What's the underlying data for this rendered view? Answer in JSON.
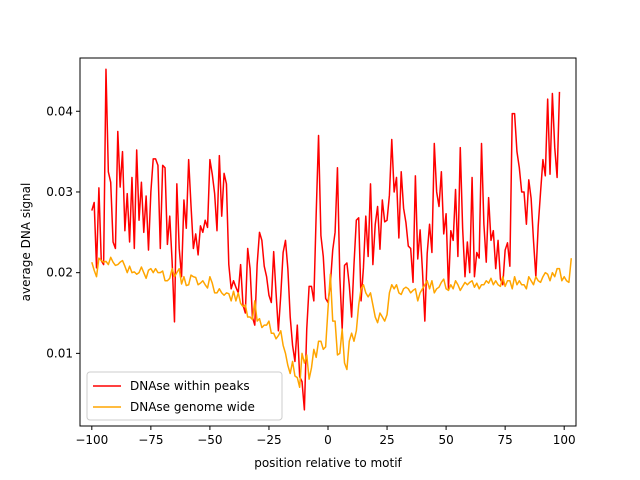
{
  "chart_data": {
    "type": "line",
    "title": "",
    "xlabel": "position relative to motif",
    "ylabel": "average DNA signal",
    "xlim": [
      -105,
      105
    ],
    "ylim": [
      0.001,
      0.0466
    ],
    "xticks": [
      -100,
      -75,
      -50,
      -25,
      0,
      25,
      50,
      75,
      100
    ],
    "xtick_labels": [
      "−100",
      "−75",
      "−50",
      "−25",
      "0",
      "25",
      "50",
      "75",
      "100"
    ],
    "yticks": [
      0.01,
      0.02,
      0.03,
      0.04
    ],
    "ytick_labels": [
      "0.01",
      "0.02",
      "0.03",
      "0.04"
    ],
    "grid": false,
    "legend_position": "lower-left",
    "series": [
      {
        "name": "DNAse within peaks",
        "color": "#ff0000",
        "x_start": -100,
        "x_step": 1,
        "values": [
          0.0277,
          0.0287,
          0.0206,
          0.0305,
          0.0215,
          0.021,
          0.0452,
          0.0325,
          0.0312,
          0.0238,
          0.023,
          0.0375,
          0.0306,
          0.035,
          0.0252,
          0.0298,
          0.0238,
          0.0318,
          0.023,
          0.0352,
          0.0265,
          0.0312,
          0.025,
          0.0295,
          0.0228,
          0.03,
          0.0341,
          0.0341,
          0.0333,
          0.023,
          0.0333,
          0.033,
          0.0235,
          0.027,
          0.0214,
          0.0139,
          0.031,
          0.023,
          0.0195,
          0.029,
          0.0255,
          0.034,
          0.0283,
          0.023,
          0.0248,
          0.0222,
          0.0258,
          0.025,
          0.0265,
          0.0256,
          0.034,
          0.0322,
          0.0298,
          0.0252,
          0.0345,
          0.027,
          0.0323,
          0.031,
          0.021,
          0.018,
          0.019,
          0.0182,
          0.0175,
          0.021,
          0.016,
          0.015,
          0.023,
          0.0205,
          0.0145,
          0.0135,
          0.021,
          0.025,
          0.024,
          0.0208,
          0.0195,
          0.0172,
          0.0163,
          0.0226,
          0.0175,
          0.0128,
          0.0172,
          0.0225,
          0.024,
          0.0205,
          0.0145,
          0.011,
          0.009,
          0.0135,
          0.0071,
          0.0065,
          0.003,
          0.013,
          0.0183,
          0.0183,
          0.0165,
          0.0273,
          0.037,
          0.0246,
          0.022,
          0.0168,
          0.0163,
          0.0186,
          0.0228,
          0.025,
          0.033,
          0.0195,
          0.013,
          0.0209,
          0.0212,
          0.0185,
          0.0145,
          0.021,
          0.0265,
          0.0268,
          0.0165,
          0.0206,
          0.027,
          0.022,
          0.031,
          0.021,
          0.026,
          0.0282,
          0.0229,
          0.029,
          0.0263,
          0.0265,
          0.0296,
          0.0365,
          0.03,
          0.0318,
          0.0243,
          0.0325,
          0.028,
          0.0262,
          0.0233,
          0.023,
          0.0188,
          0.032,
          0.0217,
          0.0253,
          0.0202,
          0.014,
          0.0224,
          0.026,
          0.0225,
          0.036,
          0.03,
          0.0282,
          0.0325,
          0.0248,
          0.0273,
          0.018,
          0.0252,
          0.024,
          0.0303,
          0.022,
          0.0355,
          0.0255,
          0.0195,
          0.0238,
          0.02,
          0.0318,
          0.0195,
          0.0225,
          0.0218,
          0.036,
          0.026,
          0.0213,
          0.0293,
          0.024,
          0.0252,
          0.0205,
          0.024,
          0.0192,
          0.0185,
          0.0228,
          0.0237,
          0.0208,
          0.0397,
          0.0397,
          0.035,
          0.033,
          0.03,
          0.03,
          0.026,
          0.0315,
          0.0292,
          0.024,
          0.0195,
          0.0258,
          0.03,
          0.034,
          0.032,
          0.0415,
          0.0322,
          0.0422,
          0.0355,
          0.0318,
          0.0424
        ]
      },
      {
        "name": "DNAse genome wide",
        "color": "#ffa500",
        "x_start": -100,
        "x_step": 1,
        "values": [
          0.0213,
          0.0203,
          0.0195,
          0.0218,
          0.0215,
          0.0213,
          0.0214,
          0.021,
          0.0219,
          0.0213,
          0.0209,
          0.021,
          0.0213,
          0.0215,
          0.0208,
          0.02,
          0.0208,
          0.02,
          0.0201,
          0.0198,
          0.02,
          0.0207,
          0.02,
          0.0193,
          0.0203,
          0.0205,
          0.02,
          0.0205,
          0.02,
          0.02,
          0.0202,
          0.019,
          0.019,
          0.0193,
          0.0205,
          0.0195,
          0.02,
          0.0205,
          0.0186,
          0.0195,
          0.0184,
          0.0185,
          0.0197,
          0.0195,
          0.0194,
          0.0185,
          0.0187,
          0.019,
          0.0185,
          0.0181,
          0.0195,
          0.0187,
          0.0175,
          0.0175,
          0.018,
          0.0175,
          0.0172,
          0.0175,
          0.0174,
          0.0165,
          0.0177,
          0.0165,
          0.0175,
          0.0162,
          0.0158,
          0.016,
          0.0145,
          0.0145,
          0.0142,
          0.0165,
          0.014,
          0.0143,
          0.0132,
          0.0135,
          0.0135,
          0.014,
          0.0125,
          0.0125,
          0.0118,
          0.0122,
          0.0128,
          0.011,
          0.01,
          0.0085,
          0.0075,
          0.009,
          0.0072,
          0.007,
          0.0058,
          0.01,
          0.0088,
          0.0098,
          0.0068,
          0.0082,
          0.0105,
          0.0095,
          0.0115,
          0.0115,
          0.0105,
          0.0108,
          0.0155,
          0.0198,
          0.014,
          0.014,
          0.0098,
          0.01,
          0.013,
          0.0088,
          0.008,
          0.0115,
          0.0125,
          0.0115,
          0.0128,
          0.016,
          0.018,
          0.0185,
          0.0175,
          0.017,
          0.0175,
          0.016,
          0.0145,
          0.0138,
          0.015,
          0.0145,
          0.014,
          0.0148,
          0.0175,
          0.0185,
          0.018,
          0.0185,
          0.0175,
          0.0173,
          0.018,
          0.0182,
          0.018,
          0.0175,
          0.0178,
          0.018,
          0.0165,
          0.0175,
          0.018,
          0.0185,
          0.019,
          0.018,
          0.019,
          0.0175,
          0.018,
          0.0182,
          0.0188,
          0.0192,
          0.018,
          0.0178,
          0.0185,
          0.018,
          0.019,
          0.0185,
          0.0178,
          0.0183,
          0.0188,
          0.0185,
          0.0188,
          0.019,
          0.0182,
          0.0187,
          0.018,
          0.0185,
          0.0185,
          0.019,
          0.0187,
          0.0193,
          0.0185,
          0.019,
          0.0185,
          0.0183,
          0.0195,
          0.0183,
          0.019,
          0.019,
          0.018,
          0.0195,
          0.0185,
          0.019,
          0.0185,
          0.0185,
          0.018,
          0.0195,
          0.019,
          0.0185,
          0.0195,
          0.019,
          0.0188,
          0.0195,
          0.02,
          0.0198,
          0.019,
          0.02,
          0.0195,
          0.0205,
          0.0205,
          0.019,
          0.0195,
          0.019,
          0.0188,
          0.0218
        ]
      }
    ]
  }
}
